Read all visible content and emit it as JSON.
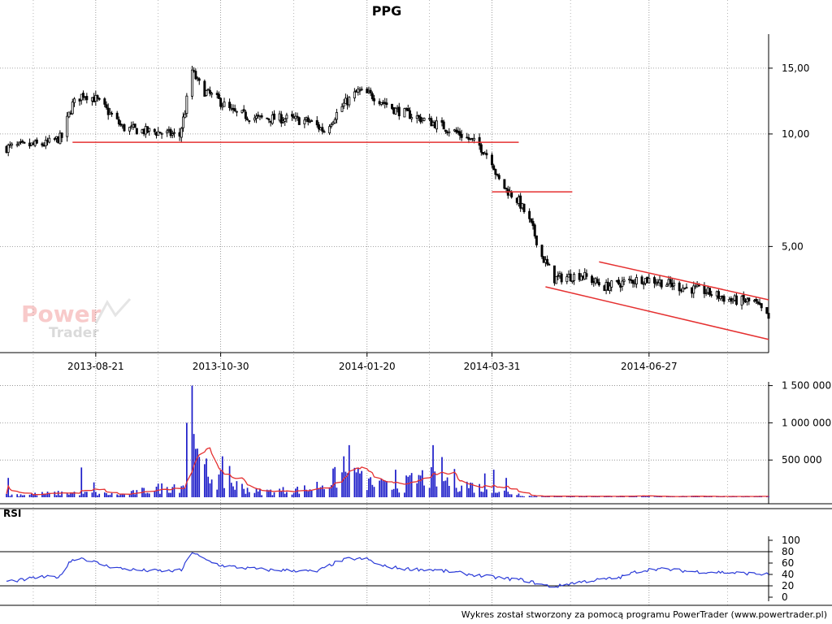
{
  "chart_data": [
    {
      "type": "candlestick",
      "title": "PPG",
      "y_scale": "log",
      "ylim": [
        2.6,
        18.5
      ],
      "y_ticks": [
        {
          "value": 5,
          "label": "5,00"
        },
        {
          "value": 10,
          "label": "10,00"
        },
        {
          "value": 15,
          "label": "15,00"
        }
      ],
      "x_range": [
        "2013-07-02",
        "2014-09-02"
      ],
      "x_ticks": [
        "2013-08-21",
        "2013-10-30",
        "2014-01-20",
        "2014-03-31",
        "2014-06-27"
      ],
      "grid": true,
      "trend_color": "#e53030",
      "trendlines": [
        {
          "from": [
            "2013-08-08",
            9.5
          ],
          "to": [
            "2014-04-15",
            9.5
          ]
        },
        {
          "from": [
            "2014-03-31",
            7.0
          ],
          "to": [
            "2014-05-15",
            7.0
          ]
        },
        {
          "from": [
            "2014-04-30",
            3.9
          ],
          "to": [
            "2014-09-02",
            2.82
          ]
        },
        {
          "from": [
            "2014-05-30",
            4.55
          ],
          "to": [
            "2014-09-02",
            3.6
          ]
        }
      ],
      "anchors": [
        [
          "2013-07-02",
          9.2
        ],
        [
          "2013-07-12",
          9.3
        ],
        [
          "2013-07-24",
          9.4
        ],
        [
          "2013-08-02",
          9.8
        ],
        [
          "2013-08-08",
          12.0
        ],
        [
          "2013-08-14",
          12.8
        ],
        [
          "2013-08-21",
          12.4
        ],
        [
          "2013-08-27",
          11.6
        ],
        [
          "2013-09-05",
          10.4
        ],
        [
          "2013-09-16",
          10.2
        ],
        [
          "2013-09-26",
          10.1
        ],
        [
          "2013-10-07",
          9.9
        ],
        [
          "2013-10-10",
          11.5
        ],
        [
          "2013-10-14",
          14.8
        ],
        [
          "2013-10-17",
          13.8
        ],
        [
          "2013-10-21",
          13.0
        ],
        [
          "2013-10-28",
          12.4
        ],
        [
          "2013-11-06",
          11.4
        ],
        [
          "2013-11-20",
          11.0
        ],
        [
          "2013-12-05",
          11.0
        ],
        [
          "2013-12-19",
          10.8
        ],
        [
          "2013-12-27",
          10.2
        ],
        [
          "2014-01-07",
          12.0
        ],
        [
          "2014-01-15",
          13.0
        ],
        [
          "2014-01-24",
          12.6
        ],
        [
          "2014-02-05",
          11.6
        ],
        [
          "2014-02-19",
          11.0
        ],
        [
          "2014-03-03",
          10.5
        ],
        [
          "2014-03-13",
          10.0
        ],
        [
          "2014-03-24",
          9.3
        ],
        [
          "2014-03-31",
          8.5
        ],
        [
          "2014-04-03",
          7.6
        ],
        [
          "2014-04-08",
          7.1
        ],
        [
          "2014-04-15",
          6.6
        ],
        [
          "2014-04-22",
          5.7
        ],
        [
          "2014-04-28",
          4.7
        ],
        [
          "2014-05-05",
          4.1
        ],
        [
          "2014-05-20",
          4.2
        ],
        [
          "2014-06-02",
          3.9
        ],
        [
          "2014-06-12",
          4.0
        ],
        [
          "2014-06-23",
          4.1
        ],
        [
          "2014-07-01",
          4.05
        ],
        [
          "2014-07-14",
          3.9
        ],
        [
          "2014-07-28",
          3.8
        ],
        [
          "2014-08-11",
          3.6
        ],
        [
          "2014-08-25",
          3.55
        ],
        [
          "2014-09-02",
          3.2
        ]
      ]
    },
    {
      "type": "bar",
      "ylim": [
        0,
        1550000
      ],
      "y_ticks": [
        {
          "value": 500000,
          "label": "500 000"
        },
        {
          "value": 1000000,
          "label": "1 000 000"
        },
        {
          "value": 1500000,
          "label": "1 500 000"
        }
      ],
      "bar_color": "#1a1ac8",
      "average_color": "#e53030",
      "volume_levels": [
        [
          "2013-07-02",
          30000
        ],
        [
          "2013-08-08",
          60000
        ],
        [
          "2013-09-05",
          35000
        ],
        [
          "2013-10-10",
          180000
        ],
        [
          "2013-10-14",
          450000
        ],
        [
          "2013-10-30",
          220000
        ],
        [
          "2013-11-20",
          70000
        ],
        [
          "2013-12-19",
          110000
        ],
        [
          "2014-01-07",
          300000
        ],
        [
          "2014-01-20",
          200000
        ],
        [
          "2014-02-05",
          120000
        ],
        [
          "2014-02-19",
          260000
        ],
        [
          "2014-03-03",
          240000
        ],
        [
          "2014-03-24",
          130000
        ],
        [
          "2014-04-10",
          60000
        ],
        [
          "2014-04-22",
          15000
        ],
        [
          "2014-09-02",
          12000
        ]
      ],
      "spikes": [
        [
          "2013-07-03",
          260000
        ],
        [
          "2013-08-13",
          400000
        ],
        [
          "2013-08-20",
          200000
        ],
        [
          "2013-10-11",
          1000000
        ],
        [
          "2013-10-14",
          1500000
        ],
        [
          "2013-10-15",
          850000
        ],
        [
          "2013-10-16",
          650000
        ],
        [
          "2013-10-31",
          550000
        ],
        [
          "2013-11-04",
          420000
        ],
        [
          "2014-01-07",
          550000
        ],
        [
          "2014-01-10",
          700000
        ],
        [
          "2014-01-15",
          400000
        ],
        [
          "2014-02-05",
          370000
        ],
        [
          "2014-02-26",
          700000
        ],
        [
          "2014-03-03",
          540000
        ],
        [
          "2014-03-10",
          380000
        ],
        [
          "2014-03-27",
          320000
        ],
        [
          "2014-04-01",
          370000
        ],
        [
          "2014-04-08",
          260000
        ]
      ]
    },
    {
      "type": "line",
      "label": "RSI",
      "ylim": [
        0,
        100
      ],
      "y_ticks": [
        {
          "value": 0,
          "label": "0"
        },
        {
          "value": 20,
          "label": "20"
        },
        {
          "value": 40,
          "label": "40"
        },
        {
          "value": 60,
          "label": "60"
        },
        {
          "value": 80,
          "label": "80"
        },
        {
          "value": 100,
          "label": "100"
        }
      ],
      "reference_lines": [
        20,
        80
      ],
      "line_color": "#2a3ad8",
      "values": [
        [
          "2013-07-02",
          28
        ],
        [
          "2013-07-10",
          30
        ],
        [
          "2013-07-20",
          35
        ],
        [
          "2013-08-01",
          36
        ],
        [
          "2013-08-06",
          62
        ],
        [
          "2013-08-12",
          70
        ],
        [
          "2013-08-20",
          62
        ],
        [
          "2013-08-27",
          55
        ],
        [
          "2013-09-05",
          50
        ],
        [
          "2013-09-16",
          47
        ],
        [
          "2013-09-30",
          46
        ],
        [
          "2013-10-08",
          47
        ],
        [
          "2013-10-14",
          80
        ],
        [
          "2013-10-21",
          66
        ],
        [
          "2013-10-30",
          56
        ],
        [
          "2013-11-10",
          52
        ],
        [
          "2013-11-25",
          48
        ],
        [
          "2013-12-10",
          47
        ],
        [
          "2013-12-23",
          45
        ],
        [
          "2014-01-03",
          62
        ],
        [
          "2014-01-10",
          68
        ],
        [
          "2014-01-20",
          67
        ],
        [
          "2014-01-28",
          55
        ],
        [
          "2014-02-10",
          50
        ],
        [
          "2014-02-26",
          48
        ],
        [
          "2014-03-10",
          44
        ],
        [
          "2014-03-24",
          38
        ],
        [
          "2014-04-07",
          33
        ],
        [
          "2014-04-18",
          30
        ],
        [
          "2014-04-28",
          22
        ],
        [
          "2014-05-05",
          18
        ],
        [
          "2014-05-15",
          25
        ],
        [
          "2014-05-28",
          30
        ],
        [
          "2014-06-10",
          34
        ],
        [
          "2014-06-20",
          45
        ],
        [
          "2014-06-30",
          50
        ],
        [
          "2014-07-10",
          48
        ],
        [
          "2014-07-22",
          45
        ],
        [
          "2014-08-05",
          44
        ],
        [
          "2014-08-20",
          42
        ],
        [
          "2014-09-02",
          40
        ]
      ]
    }
  ],
  "watermark": {
    "line1": "Power",
    "line2": "Trader"
  },
  "footer": "Wykres został stworzony za pomocą programu PowerTrader (www.powertrader.pl)"
}
